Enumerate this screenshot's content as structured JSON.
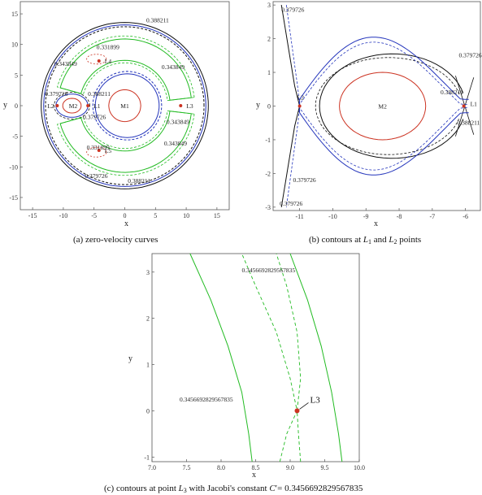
{
  "colors": {
    "green": "#22bb22",
    "blue": "#2233bb",
    "black": "#111111",
    "red": "#cc3322",
    "brown": "#885544"
  },
  "chart_data": [
    {
      "type": "line",
      "caption": "(a) zero-velocity curves",
      "xlabel": "x",
      "ylabel": "y",
      "xlim": [
        -17,
        17
      ],
      "ylim": [
        -17,
        17
      ],
      "xticks": [
        "-15",
        "-10",
        "-5",
        "0",
        "5",
        "10",
        "15"
      ],
      "yticks": [
        "15",
        "10",
        "5",
        "0",
        "-5",
        "-10",
        "-15"
      ],
      "bodies": [
        {
          "name": "M1",
          "x": 0,
          "y": 0
        },
        {
          "name": "M2",
          "x": -8.4,
          "y": 0
        }
      ],
      "points": [
        {
          "name": "L1",
          "x": -6.0,
          "y": 0
        },
        {
          "name": "L2",
          "x": -11.0,
          "y": 0
        },
        {
          "name": "L3",
          "x": 9.1,
          "y": 0
        },
        {
          "name": "L4",
          "x": -4.2,
          "y": 7.3
        },
        {
          "name": "L5",
          "x": -4.2,
          "y": -7.3
        }
      ],
      "contour_labels": [
        {
          "text": "0.388211",
          "x": 3.5,
          "y": 13.6
        },
        {
          "text": "0.331899",
          "x": -4.6,
          "y": 9.2
        },
        {
          "text": "0.343849",
          "x": -11.5,
          "y": 6.5
        },
        {
          "text": "0.343849",
          "x": 6.0,
          "y": 6.0
        },
        {
          "text": "0.388211",
          "x": -6.0,
          "y": 1.6
        },
        {
          "text": "0.379726",
          "x": -13.0,
          "y": 1.6
        },
        {
          "text": "0.379726",
          "x": -6.8,
          "y": -2.2
        },
        {
          "text": "0.343849",
          "x": 6.8,
          "y": -3.0
        },
        {
          "text": "0.331899",
          "x": -6.2,
          "y": -7.2
        },
        {
          "text": "0.343849",
          "x": 6.4,
          "y": -6.5
        },
        {
          "text": "0.379726",
          "x": -6.5,
          "y": -11.8
        },
        {
          "text": "0.388211",
          "x": 0.5,
          "y": -12.6
        }
      ]
    },
    {
      "type": "line",
      "caption_parts": [
        "(b) contours at ",
        "L",
        "1",
        " and ",
        "L",
        "2",
        " points"
      ],
      "xlabel": "x",
      "ylabel": "y",
      "xlim": [
        -11.8,
        -5.55
      ],
      "ylim": [
        -3.1,
        3.1
      ],
      "xticks": [
        "-11",
        "-10",
        "-9",
        "-8",
        "-7",
        "-6"
      ],
      "yticks": [
        "3",
        "2",
        "1",
        "0",
        "-1",
        "-2",
        "-3"
      ],
      "bodies": [
        {
          "name": "M2",
          "x": -8.5,
          "y": 0
        }
      ],
      "points": [
        {
          "name": "L2",
          "x": -11.0,
          "y": 0
        },
        {
          "name": "L1",
          "x": -6.05,
          "y": 0
        }
      ],
      "contour_labels": [
        {
          "text": "0.379726",
          "x": -11.55,
          "y": 2.8
        },
        {
          "text": "0.379726",
          "x": -6.2,
          "y": 1.45
        },
        {
          "text": "0.388211",
          "x": -6.75,
          "y": 0.35
        },
        {
          "text": "0.388211",
          "x": -6.25,
          "y": -0.55
        },
        {
          "text": "0.379726",
          "x": -11.2,
          "y": -2.25
        },
        {
          "text": "0.379726",
          "x": -11.6,
          "y": -2.95
        }
      ]
    },
    {
      "type": "line",
      "caption_parts": [
        "(c) contours at point ",
        "L",
        "3",
        " with Jacobi's constant ",
        "C",
        "′= 0.3456692829567835"
      ],
      "xlabel": "x",
      "ylabel": "y",
      "xlim": [
        7.0,
        10.0
      ],
      "ylim": [
        -1.1,
        3.4
      ],
      "xticks": [
        "7.0",
        "7.5",
        "8.0",
        "8.5",
        "9.0",
        "9.5",
        "10.0"
      ],
      "yticks": [
        "3",
        "2",
        "1",
        "0",
        "-1"
      ],
      "points": [
        {
          "name": "L3",
          "x": 9.1,
          "y": 0
        }
      ],
      "contour_labels": [
        {
          "text": "0.3456692829567835",
          "x": 8.3,
          "y": 3.0
        },
        {
          "text": "0.3456692829567835",
          "x": 7.4,
          "y": 0.2
        }
      ]
    }
  ]
}
